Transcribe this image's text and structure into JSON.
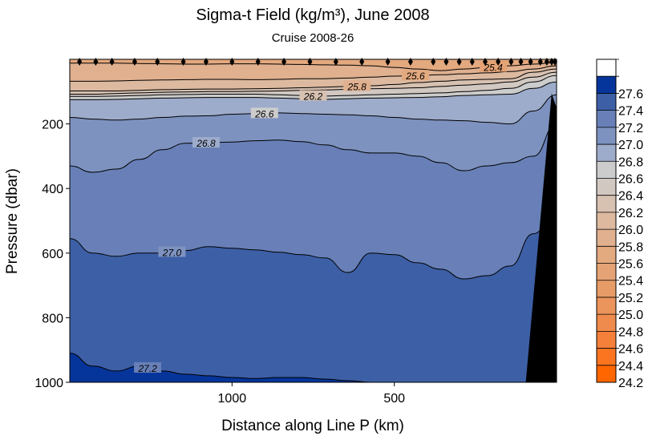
{
  "chart_data": {
    "type": "contour",
    "title": "Sigma-t Field (kg/m³),  June 2008",
    "subtitle": "Cruise 2008-26",
    "xlabel": "Distance along Line P  (km)",
    "ylabel": "Pressure  (dbar)",
    "xlim": [
      1500,
      0
    ],
    "ylim": [
      1000,
      0
    ],
    "x_ticks": [
      {
        "value": 1000,
        "label": "1000"
      },
      {
        "value": 500,
        "label": "500"
      }
    ],
    "y_ticks": [
      {
        "value": 200,
        "label": "200"
      },
      {
        "value": 400,
        "label": "400"
      },
      {
        "value": 600,
        "label": "600"
      },
      {
        "value": 800,
        "label": "800"
      },
      {
        "value": 1000,
        "label": "1000"
      }
    ],
    "station_distances_km": [
      1470,
      1420,
      1370,
      1300,
      1230,
      1150,
      1080,
      1000,
      920,
      840,
      760,
      680,
      600,
      520,
      450,
      380,
      340,
      300,
      260,
      220,
      180,
      140,
      110,
      80,
      50,
      30,
      15,
      5
    ],
    "colorbar": {
      "levels": [
        "24.2",
        "24.4",
        "24.6",
        "24.8",
        "25.0",
        "25.2",
        "25.4",
        "25.6",
        "25.8",
        "26.0",
        "26.2",
        "26.4",
        "26.6",
        "26.8",
        "27.0",
        "27.2",
        "27.4",
        "27.6"
      ],
      "colors": [
        "#ff6600",
        "#fb7420",
        "#f5803a",
        "#ef8b4c",
        "#eb945b",
        "#e79c68",
        "#e5a375",
        "#e3a97f",
        "#e0b08f",
        "#dcb99f",
        "#d7c1b1",
        "#d2c8c2",
        "#cccccc",
        "#9eaccb",
        "#7d92bf",
        "#6880b7",
        "#3d5fa6",
        "#05359a"
      ],
      "top_color": "#ffffff"
    },
    "contours": [
      {
        "level": "25.4",
        "label": "25.4",
        "depths": [
          12,
          12,
          12,
          13,
          14,
          15,
          15,
          14,
          14,
          15,
          16,
          17,
          18,
          20,
          25,
          30,
          35,
          30,
          25,
          20,
          15,
          10
        ]
      },
      {
        "level": "25.6",
        "label": "25.6",
        "depths": [
          68,
          68,
          67,
          65,
          64,
          63,
          62,
          62,
          63,
          62,
          60,
          60,
          58,
          55,
          52,
          50,
          48,
          45,
          42,
          38,
          30,
          20
        ]
      },
      {
        "level": "25.8",
        "label": "25.8",
        "depths": [
          98,
          98,
          98,
          96,
          94,
          93,
          92,
          92,
          91,
          90,
          88,
          86,
          84,
          82,
          78,
          72,
          68,
          64,
          62,
          60,
          40,
          30
        ]
      },
      {
        "level": "26.0",
        "label": "",
        "depths": [
          108,
          108,
          106,
          104,
          102,
          101,
          100,
          100,
          99,
          98,
          96,
          95,
          93,
          91,
          90,
          88,
          84,
          80,
          76,
          70,
          55,
          40
        ]
      },
      {
        "level": "26.2",
        "label": "26.2",
        "depths": [
          115,
          115,
          114,
          112,
          110,
          109,
          108,
          108,
          108,
          110,
          112,
          114,
          112,
          110,
          108,
          106,
          104,
          100,
          96,
          90,
          70,
          50
        ]
      },
      {
        "level": "26.4",
        "label": "",
        "depths": [
          125,
          125,
          124,
          122,
          120,
          119,
          118,
          118,
          118,
          120,
          122,
          124,
          122,
          120,
          119,
          118,
          116,
          112,
          110,
          108,
          90,
          70
        ]
      },
      {
        "level": "26.6",
        "label": "26.6",
        "depths": [
          180,
          185,
          188,
          185,
          180,
          176,
          175,
          170,
          168,
          166,
          168,
          170,
          172,
          175,
          180,
          185,
          188,
          190,
          195,
          200,
          160,
          110
        ]
      },
      {
        "level": "26.8",
        "label": "26.8",
        "depths": [
          330,
          350,
          340,
          310,
          280,
          260,
          258,
          256,
          252,
          250,
          255,
          265,
          280,
          290,
          290,
          300,
          320,
          345,
          330,
          320,
          300,
          200
        ]
      },
      {
        "level": "27.0",
        "label": "27.0",
        "depths": [
          555,
          600,
          610,
          600,
          600,
          592,
          580,
          585,
          590,
          597,
          605,
          615,
          660,
          600,
          605,
          630,
          650,
          680,
          670,
          640,
          540,
          470
        ]
      },
      {
        "level": "27.2",
        "label": "27.2",
        "depths": [
          910,
          950,
          965,
          950,
          965,
          975,
          980,
          985,
          988,
          985,
          985,
          990,
          995,
          1000,
          1000,
          1000,
          1000,
          1000,
          1000,
          1000,
          1000,
          1000
        ]
      }
    ],
    "bathymetry": {
      "surface_distance_km": 15,
      "bottom_distance_km": 95,
      "color": "#000000"
    }
  }
}
